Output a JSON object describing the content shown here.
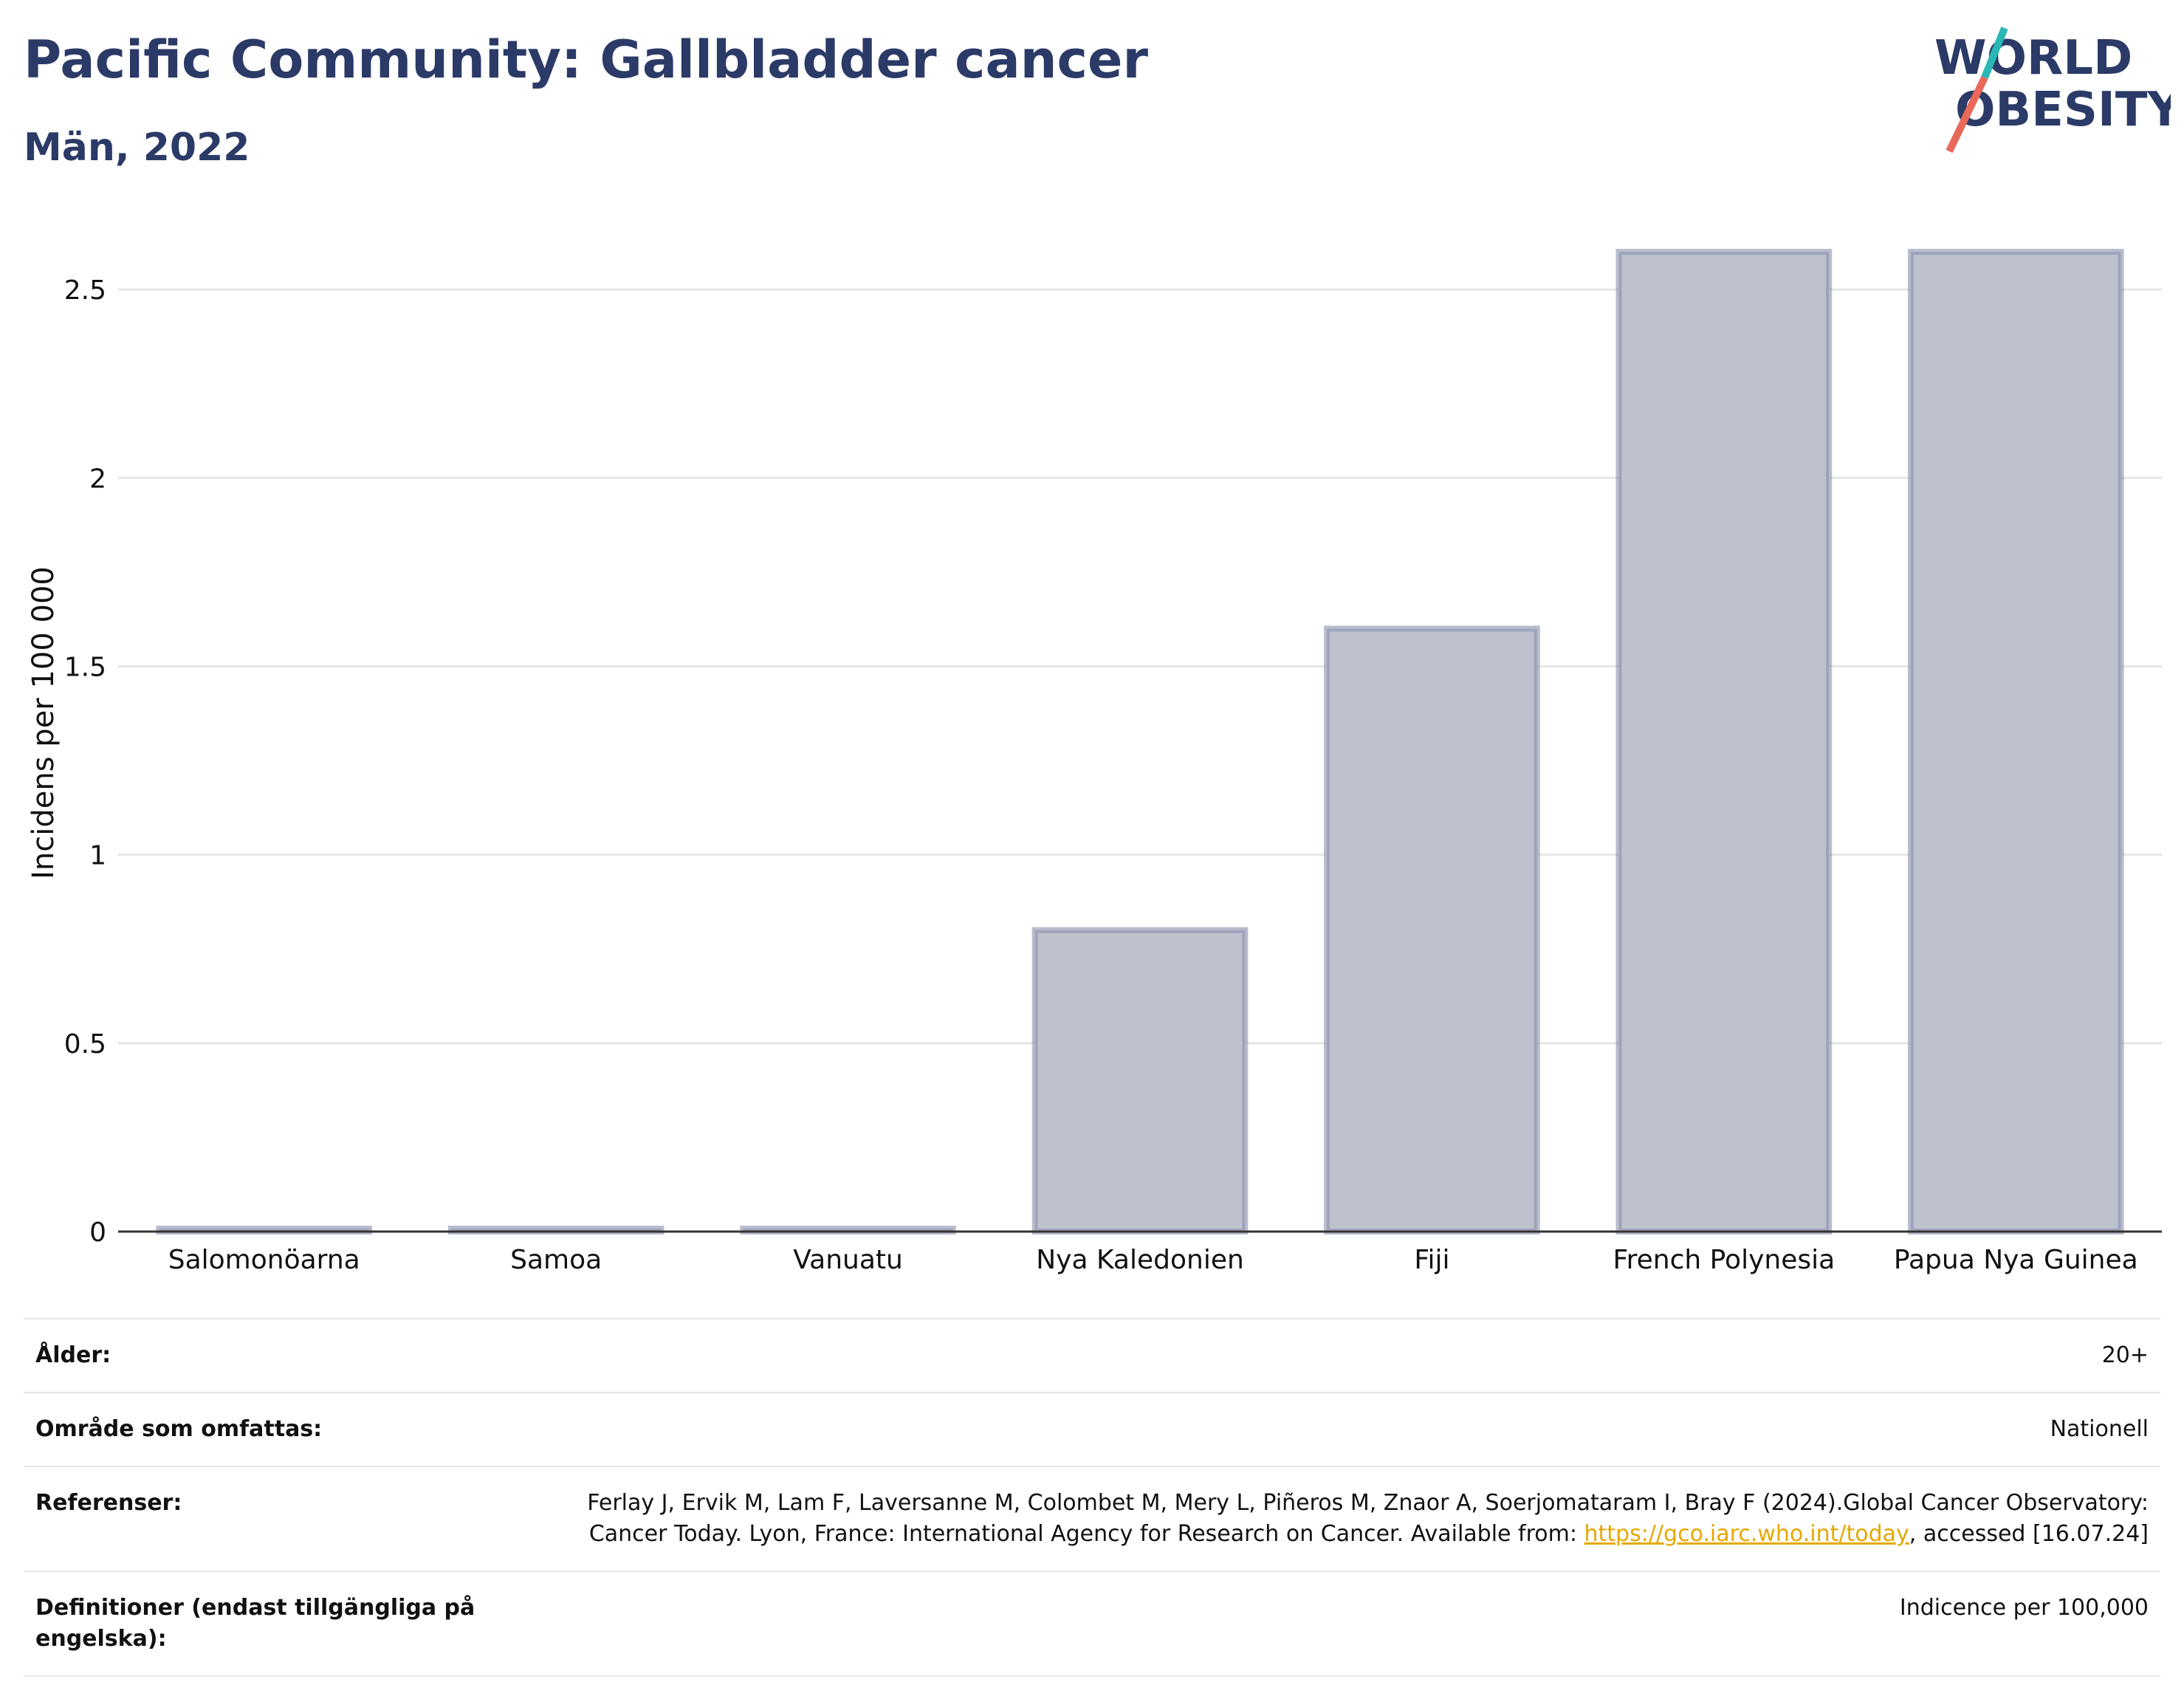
{
  "header": {
    "title": "Pacific Community: Gallbladder cancer",
    "subtitle": "Män, 2022"
  },
  "logo": {
    "line1": "WORLD",
    "line2": "OBESITY"
  },
  "chart_data": {
    "type": "bar",
    "categories": [
      "Salomonöarna",
      "Samoa",
      "Vanuatu",
      "Nya Kaledonien",
      "Fiji",
      "French Polynesia",
      "Papua Nya Guinea"
    ],
    "values": [
      0,
      0,
      0,
      0.8,
      1.6,
      2.6,
      2.6
    ],
    "ylabel": "Incidens per 100 000",
    "ylim": [
      0,
      2.7
    ],
    "yticks": [
      0,
      0.5,
      1,
      1.5,
      2,
      2.5
    ],
    "ytick_labels": [
      "0",
      "0.5",
      "1",
      "1.5",
      "2",
      "2.5"
    ],
    "grid": true,
    "colors": {
      "bar_fill": "#bec2cf",
      "bar_stroke": "#8a90ab",
      "text": "#2b3a67",
      "accent_teal": "#2ab7b5",
      "accent_red": "#e8685a"
    }
  },
  "meta": {
    "age_label": "Ålder:",
    "age_value": "20+",
    "area_label": "Område som omfattas:",
    "area_value": "Nationell",
    "ref_label": "Referenser:",
    "ref_text": "Ferlay J, Ervik M, Lam F, Laversanne M, Colombet M, Mery L, Piñeros M, Znaor A, Soerjomataram I, Bray F (2024).Global Cancer Observatory: Cancer Today. Lyon, France: International Agency for Research on Cancer. Available from: ",
    "ref_link": "https://gco.iarc.who.int/today",
    "ref_suffix": ", accessed [16.07.24]",
    "def_label": "Definitioner (endast tillgängliga på engelska):",
    "def_value": "Indicence per 100,000"
  }
}
